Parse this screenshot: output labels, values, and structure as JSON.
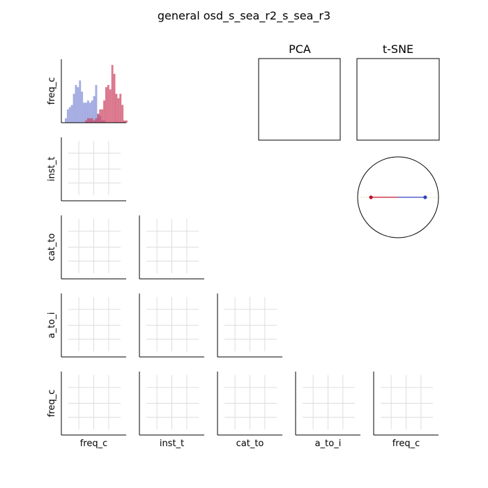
{
  "chart_data": {
    "type": "pair-grid",
    "title": "general osd_s_sea_r2_s_sea_r3",
    "variables": [
      "freq_c",
      "inst_t",
      "cat_to",
      "a_to_i",
      "freq_c"
    ],
    "histogram": {
      "variable": "freq_c",
      "series": [
        {
          "color": "#7f8ad6",
          "counts": [
            2,
            6,
            7,
            8,
            13,
            17,
            16,
            19,
            14,
            9,
            9,
            10,
            9,
            10,
            12,
            17,
            4,
            3,
            1,
            1
          ]
        },
        {
          "color": "#cc3f5d",
          "counts": [
            0,
            0,
            0,
            0,
            0,
            0,
            0,
            0,
            0,
            0,
            1,
            2,
            2,
            2,
            1,
            2,
            4,
            6,
            6,
            10,
            16,
            17,
            15,
            26,
            22,
            13,
            11,
            13,
            8,
            1,
            1
          ]
        }
      ]
    },
    "panels": {
      "pca_title": "PCA",
      "tsne_title": "t-SNE"
    },
    "circle_plot": {
      "points": [
        {
          "label": "",
          "x": -1.0,
          "y": 0.0,
          "color": "#c0102a"
        },
        {
          "label": "",
          "x": 1.0,
          "y": 0.0,
          "color": "#3040c0"
        }
      ]
    },
    "grid_color": "#dddddd"
  }
}
